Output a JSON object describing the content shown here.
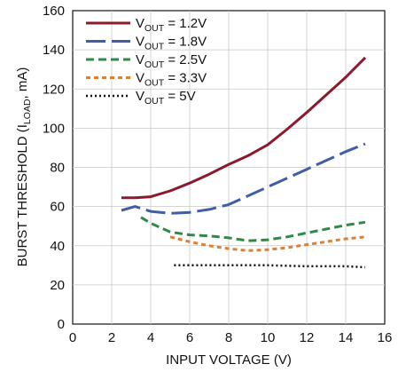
{
  "chart_data": {
    "type": "line",
    "xlabel": "INPUT VOLTAGE (V)",
    "ylabel": {
      "main": "BURST THRESHOLD (I",
      "sub": "LOAD",
      "suffix": ", mA)"
    },
    "xlim": [
      0,
      16
    ],
    "ylim": [
      0,
      160
    ],
    "xticks": [
      "0",
      "2",
      "4",
      "6",
      "8",
      "10",
      "12",
      "14",
      "16"
    ],
    "yticks": [
      "0",
      "20",
      "40",
      "60",
      "80",
      "100",
      "120",
      "140",
      "160"
    ],
    "grid": true,
    "legend_position": "top-left",
    "series": [
      {
        "legend": {
          "prefix": "V",
          "sub": "OUT",
          "suffix": " = 1.2V"
        },
        "color": "#8b1a2e",
        "dash": "solid",
        "x": [
          2.5,
          3.2,
          4.0,
          5.0,
          6.0,
          7.0,
          8.0,
          9.0,
          10.0,
          11.0,
          12.0,
          13.0,
          14.0,
          15.0
        ],
        "y": [
          64.5,
          64.5,
          65.0,
          68.0,
          72.0,
          76.5,
          81.5,
          86.0,
          91.5,
          99.5,
          108.0,
          117.0,
          126.0,
          136.0
        ]
      },
      {
        "legend": {
          "prefix": "V",
          "sub": "OUT",
          "suffix": " = 1.8V"
        },
        "color": "#3e5ea6",
        "dash": "long-dash",
        "x": [
          2.5,
          3.2,
          4.0,
          5.0,
          6.0,
          7.0,
          8.0,
          9.0,
          10.0,
          11.0,
          12.0,
          13.0,
          14.0,
          15.0
        ],
        "y": [
          58.0,
          60.0,
          57.5,
          56.5,
          57.0,
          58.5,
          61.0,
          65.5,
          70.0,
          74.5,
          79.0,
          83.5,
          88.0,
          92.0
        ]
      },
      {
        "legend": {
          "prefix": "V",
          "sub": "OUT",
          "suffix": " = 2.5V"
        },
        "color": "#2e8b45",
        "dash": "dash",
        "x": [
          3.5,
          4.0,
          5.0,
          6.0,
          7.0,
          8.0,
          9.0,
          10.0,
          11.0,
          12.0,
          13.0,
          14.0,
          15.0
        ],
        "y": [
          54.5,
          51.5,
          47.0,
          45.5,
          45.0,
          44.0,
          42.5,
          43.0,
          44.5,
          46.5,
          48.5,
          50.5,
          52.0
        ]
      },
      {
        "legend": {
          "prefix": "V",
          "sub": "OUT",
          "suffix": " = 3.3V"
        },
        "color": "#d8813a",
        "dash": "short-dash",
        "x": [
          5.0,
          6.0,
          7.0,
          8.0,
          9.0,
          10.0,
          11.0,
          12.0,
          13.0,
          14.0,
          15.0
        ],
        "y": [
          44.5,
          42.0,
          40.0,
          38.5,
          37.5,
          38.0,
          39.0,
          40.5,
          42.0,
          43.5,
          44.5
        ]
      },
      {
        "legend": {
          "prefix": "V",
          "sub": "OUT",
          "suffix": " = 5V"
        },
        "color": "#111111",
        "dash": "dot",
        "x": [
          5.2,
          6.0,
          8.0,
          10.0,
          12.0,
          14.0,
          15.0
        ],
        "y": [
          30.0,
          30.0,
          30.0,
          30.0,
          29.5,
          29.5,
          29.0
        ]
      }
    ]
  }
}
